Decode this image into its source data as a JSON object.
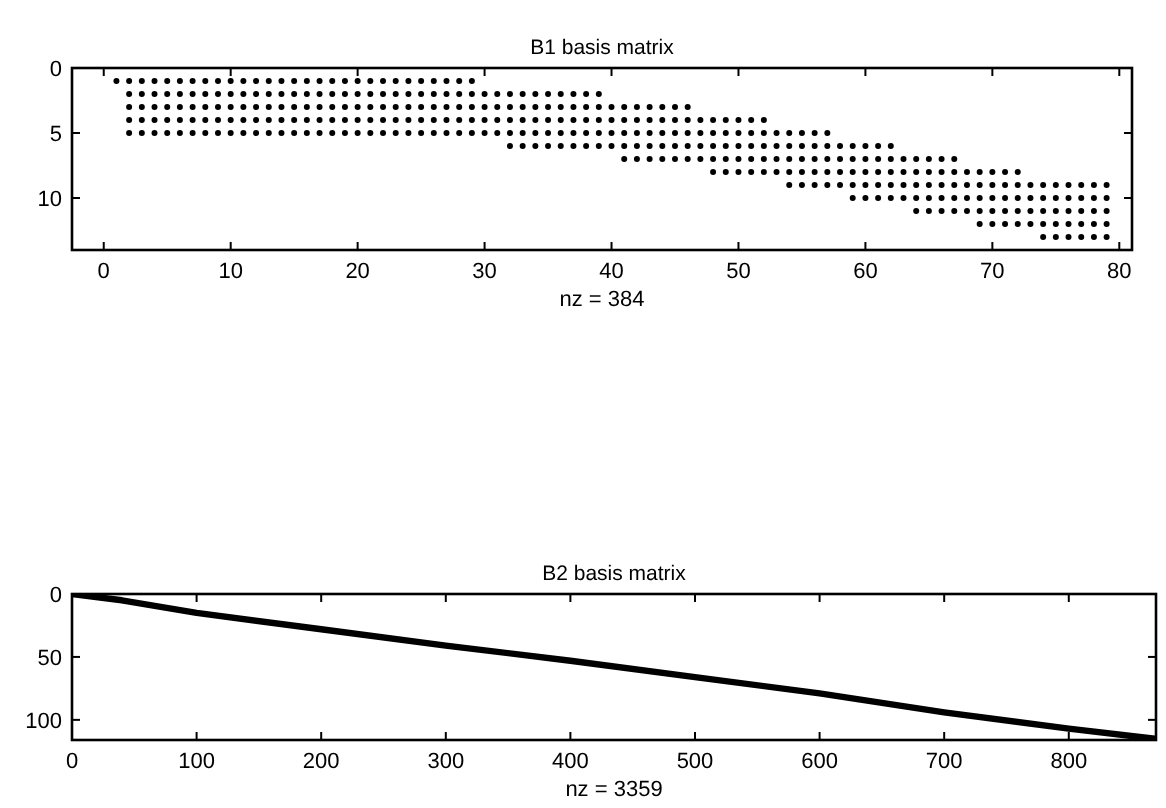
{
  "chart_data": [
    {
      "type": "scatter",
      "title": "B1 basis matrix",
      "xlabel": "nz = 384",
      "xlim": [
        -2.5,
        81
      ],
      "ylim": [
        14,
        0
      ],
      "xticks": [
        0,
        10,
        20,
        30,
        40,
        50,
        60,
        70,
        80
      ],
      "yticks": [
        0,
        5,
        10
      ],
      "marker": "circle",
      "series": [
        {
          "color": "#000000",
          "x": [
            1,
            2,
            3,
            4,
            5,
            6,
            7,
            8,
            9,
            10,
            11,
            12,
            13,
            14,
            15,
            16,
            17,
            18,
            19,
            20,
            21,
            22,
            23,
            24,
            25,
            26,
            27,
            28,
            29,
            2,
            3,
            4,
            5,
            6,
            7,
            8,
            9,
            10,
            11,
            12,
            13,
            14,
            15,
            16,
            17,
            18,
            19,
            20,
            21,
            22,
            23,
            24,
            25,
            26,
            27,
            28,
            29,
            30,
            31,
            32,
            33,
            34,
            35,
            36,
            37,
            38,
            39,
            2,
            3,
            4,
            5,
            6,
            7,
            8,
            9,
            10,
            11,
            12,
            13,
            14,
            15,
            16,
            17,
            18,
            19,
            20,
            21,
            22,
            23,
            24,
            25,
            26,
            27,
            28,
            29,
            30,
            31,
            32,
            33,
            34,
            35,
            36,
            37,
            38,
            39,
            40,
            41,
            42,
            43,
            44,
            45,
            46,
            2,
            3,
            4,
            5,
            6,
            7,
            8,
            9,
            10,
            11,
            12,
            13,
            14,
            15,
            16,
            17,
            18,
            19,
            20,
            21,
            22,
            23,
            24,
            25,
            26,
            27,
            28,
            29,
            30,
            31,
            32,
            33,
            34,
            35,
            36,
            37,
            38,
            39,
            40,
            41,
            42,
            43,
            44,
            45,
            46,
            47,
            48,
            49,
            50,
            51,
            52,
            2,
            3,
            4,
            5,
            6,
            7,
            8,
            9,
            10,
            11,
            12,
            13,
            14,
            15,
            16,
            17,
            18,
            19,
            20,
            21,
            22,
            23,
            24,
            25,
            26,
            27,
            28,
            29,
            30,
            31,
            32,
            33,
            34,
            35,
            36,
            37,
            38,
            39,
            40,
            41,
            42,
            43,
            44,
            45,
            46,
            47,
            48,
            49,
            50,
            51,
            52,
            53,
            54,
            55,
            56,
            57,
            32,
            33,
            34,
            35,
            36,
            37,
            38,
            39,
            40,
            41,
            42,
            43,
            44,
            45,
            46,
            47,
            48,
            49,
            50,
            51,
            52,
            53,
            54,
            55,
            56,
            57,
            58,
            59,
            60,
            61,
            62,
            41,
            42,
            43,
            44,
            45,
            46,
            47,
            48,
            49,
            50,
            51,
            52,
            53,
            54,
            55,
            56,
            57,
            58,
            59,
            60,
            61,
            62,
            63,
            64,
            65,
            66,
            67,
            48,
            49,
            50,
            51,
            52,
            53,
            54,
            55,
            56,
            57,
            58,
            59,
            60,
            61,
            62,
            63,
            64,
            65,
            66,
            67,
            68,
            69,
            70,
            71,
            72,
            54,
            55,
            56,
            57,
            58,
            59,
            60,
            61,
            62,
            63,
            64,
            65,
            66,
            67,
            68,
            69,
            70,
            71,
            72,
            73,
            74,
            75,
            76,
            77,
            78,
            79,
            59,
            60,
            61,
            62,
            63,
            64,
            65,
            66,
            67,
            68,
            69,
            70,
            71,
            72,
            73,
            74,
            75,
            76,
            77,
            78,
            79,
            64,
            65,
            66,
            67,
            68,
            69,
            70,
            71,
            72,
            73,
            74,
            75,
            76,
            77,
            78,
            79,
            69,
            70,
            71,
            72,
            73,
            74,
            75,
            76,
            77,
            78,
            79,
            74,
            75,
            76,
            77,
            78,
            79
          ],
          "values": [
            1,
            1,
            1,
            1,
            1,
            1,
            1,
            1,
            1,
            1,
            1,
            1,
            1,
            1,
            1,
            1,
            1,
            1,
            1,
            1,
            1,
            1,
            1,
            1,
            1,
            1,
            1,
            1,
            1,
            2,
            2,
            2,
            2,
            2,
            2,
            2,
            2,
            2,
            2,
            2,
            2,
            2,
            2,
            2,
            2,
            2,
            2,
            2,
            2,
            2,
            2,
            2,
            2,
            2,
            2,
            2,
            2,
            2,
            2,
            2,
            2,
            2,
            2,
            2,
            2,
            2,
            2,
            3,
            3,
            3,
            3,
            3,
            3,
            3,
            3,
            3,
            3,
            3,
            3,
            3,
            3,
            3,
            3,
            3,
            3,
            3,
            3,
            3,
            3,
            3,
            3,
            3,
            3,
            3,
            3,
            3,
            3,
            3,
            3,
            3,
            3,
            3,
            3,
            3,
            3,
            3,
            3,
            3,
            3,
            3,
            3,
            3,
            4,
            4,
            4,
            4,
            4,
            4,
            4,
            4,
            4,
            4,
            4,
            4,
            4,
            4,
            4,
            4,
            4,
            4,
            4,
            4,
            4,
            4,
            4,
            4,
            4,
            4,
            4,
            4,
            4,
            4,
            4,
            4,
            4,
            4,
            4,
            4,
            4,
            4,
            4,
            4,
            4,
            4,
            4,
            4,
            4,
            4,
            4,
            4,
            4,
            4,
            4,
            5,
            5,
            5,
            5,
            5,
            5,
            5,
            5,
            5,
            5,
            5,
            5,
            5,
            5,
            5,
            5,
            5,
            5,
            5,
            5,
            5,
            5,
            5,
            5,
            5,
            5,
            5,
            5,
            5,
            5,
            5,
            5,
            5,
            5,
            5,
            5,
            5,
            5,
            5,
            5,
            5,
            5,
            5,
            5,
            5,
            5,
            5,
            5,
            5,
            5,
            5,
            5,
            5,
            5,
            5,
            5,
            6,
            6,
            6,
            6,
            6,
            6,
            6,
            6,
            6,
            6,
            6,
            6,
            6,
            6,
            6,
            6,
            6,
            6,
            6,
            6,
            6,
            6,
            6,
            6,
            6,
            6,
            6,
            6,
            6,
            6,
            6,
            7,
            7,
            7,
            7,
            7,
            7,
            7,
            7,
            7,
            7,
            7,
            7,
            7,
            7,
            7,
            7,
            7,
            7,
            7,
            7,
            7,
            7,
            7,
            7,
            7,
            7,
            7,
            8,
            8,
            8,
            8,
            8,
            8,
            8,
            8,
            8,
            8,
            8,
            8,
            8,
            8,
            8,
            8,
            8,
            8,
            8,
            8,
            8,
            8,
            8,
            8,
            8,
            9,
            9,
            9,
            9,
            9,
            9,
            9,
            9,
            9,
            9,
            9,
            9,
            9,
            9,
            9,
            9,
            9,
            9,
            9,
            9,
            9,
            9,
            9,
            9,
            9,
            9,
            10,
            10,
            10,
            10,
            10,
            10,
            10,
            10,
            10,
            10,
            10,
            10,
            10,
            10,
            10,
            10,
            10,
            10,
            10,
            10,
            10,
            11,
            11,
            11,
            11,
            11,
            11,
            11,
            11,
            11,
            11,
            11,
            11,
            11,
            11,
            11,
            11,
            12,
            12,
            12,
            12,
            12,
            12,
            12,
            12,
            12,
            12,
            12,
            13,
            13,
            13,
            13,
            13,
            13
          ]
        }
      ]
    },
    {
      "type": "line",
      "title": "B2 basis matrix",
      "xlabel": "nz = 3359",
      "xlim": [
        0,
        870
      ],
      "ylim": [
        116,
        0
      ],
      "xticks": [
        0,
        100,
        200,
        300,
        400,
        500,
        600,
        700,
        800
      ],
      "yticks": [
        0,
        50,
        100
      ],
      "line_style": "solid",
      "series": [
        {
          "color": "#000000",
          "x": [
            0,
            40,
            100,
            200,
            300,
            400,
            500,
            600,
            700,
            800,
            869
          ],
          "values": [
            0,
            5,
            15,
            28,
            41,
            53,
            66,
            79,
            94,
            107,
            115
          ]
        }
      ]
    }
  ]
}
